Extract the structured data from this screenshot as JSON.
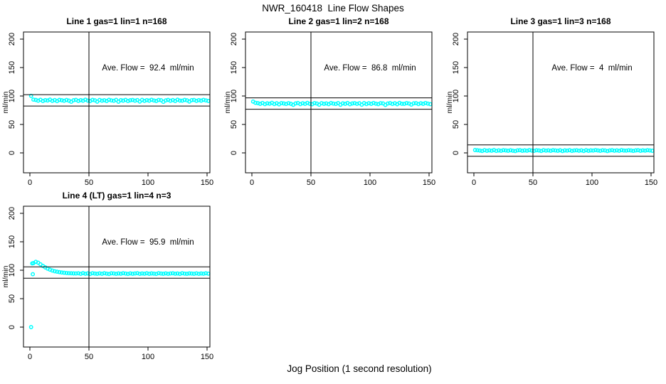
{
  "page": {
    "main_title": "NWR_160418  Line Flow Shapes",
    "x_axis_outer_label": "Jog Position (1 second resolution)",
    "background_color": "#ffffff",
    "point_color": "#00ffff",
    "axis_color": "#000000"
  },
  "chart_data": [
    {
      "type": "scatter",
      "title": "Line 1 gas=1 lin=1 n=168",
      "annotation": "Ave. Flow =  92.4  ml/min",
      "ave_flow": 92.4,
      "n": 168,
      "ylabel": "ml/min",
      "marker": "open-circle",
      "grid": false,
      "x_ticks": [
        0,
        50,
        100,
        150
      ],
      "y_ticks": [
        0,
        50,
        100,
        150,
        200
      ],
      "xlim": [
        -5.4,
        152.4
      ],
      "ylim": [
        -35,
        212.5
      ],
      "vline_x": 50,
      "hlines": [
        102.4,
        82.4
      ],
      "points": {
        "x_start": 1,
        "x_step": 2,
        "y": [
          100.2,
          93.6,
          93.1,
          91.8,
          93.4,
          91.3,
          92.7,
          92.1,
          93.6,
          91.5,
          92.9,
          91.0,
          93.2,
          92.5,
          91.6,
          93.0,
          91.9,
          89.9,
          92.6,
          93.3,
          91.4,
          92.8,
          91.7,
          93.5,
          92.0,
          91.2,
          93.1,
          92.4,
          90.1,
          93.0,
          91.8,
          92.6,
          91.3,
          93.4,
          92.2,
          91.6,
          93.2,
          90.0,
          92.7,
          91.9,
          93.3,
          91.1,
          92.5,
          93.0,
          91.7,
          92.9,
          90.2,
          93.1,
          91.5,
          92.8,
          91.9,
          93.4,
          92.1,
          91.3,
          93.0,
          92.6,
          89.8,
          92.3,
          93.2,
          91.6,
          92.9,
          91.2,
          93.5,
          92.0,
          91.8,
          93.1,
          92.4,
          90.3,
          92.7,
          93.0,
          91.5,
          92.8,
          91.9,
          93.3,
          92.2,
          91.4
        ]
      },
      "extra_points": []
    },
    {
      "type": "scatter",
      "title": "Line 2 gas=1 lin=2 n=168",
      "annotation": "Ave. Flow =  86.8  ml/min",
      "ave_flow": 86.8,
      "n": 168,
      "ylabel": "ml/min",
      "marker": "open-circle",
      "grid": false,
      "x_ticks": [
        0,
        50,
        100,
        150
      ],
      "y_ticks": [
        0,
        50,
        100,
        150,
        200
      ],
      "xlim": [
        -5.4,
        152.4
      ],
      "ylim": [
        -35,
        212.5
      ],
      "vline_x": 50,
      "hlines": [
        96.8,
        76.8
      ],
      "points": {
        "x_start": 1,
        "x_step": 2,
        "y": [
          90.3,
          88.0,
          87.5,
          86.2,
          87.8,
          85.7,
          87.1,
          86.5,
          88.0,
          85.9,
          87.3,
          85.4,
          87.6,
          86.9,
          86.0,
          87.4,
          86.3,
          84.5,
          87.0,
          87.7,
          85.8,
          87.2,
          86.1,
          87.9,
          86.4,
          85.6,
          87.5,
          86.8,
          84.7,
          87.4,
          86.2,
          87.0,
          85.7,
          87.8,
          86.6,
          86.0,
          87.6,
          84.6,
          87.1,
          86.3,
          87.7,
          85.5,
          86.9,
          87.4,
          86.1,
          87.3,
          84.8,
          87.5,
          85.9,
          87.2,
          86.3,
          87.8,
          86.5,
          85.7,
          87.4,
          87.0,
          84.4,
          86.7,
          87.6,
          86.0,
          87.3,
          85.6,
          87.9,
          86.4,
          86.2,
          87.5,
          86.8,
          84.9,
          87.1,
          87.4,
          85.9,
          87.2,
          86.3,
          87.7,
          86.6,
          85.8
        ]
      },
      "extra_points": []
    },
    {
      "type": "scatter",
      "title": "Line 3 gas=1 lin=3 n=168",
      "annotation": "Ave. Flow =  4  ml/min",
      "ave_flow": 4,
      "n": 168,
      "ylabel": "ml/min",
      "marker": "open-circle",
      "grid": false,
      "x_ticks": [
        0,
        50,
        100,
        150
      ],
      "y_ticks": [
        0,
        50,
        100,
        150,
        200
      ],
      "xlim": [
        -5.4,
        152.4
      ],
      "ylim": [
        -35,
        212.5
      ],
      "vline_x": 50,
      "hlines": [
        14,
        -6
      ],
      "points": {
        "x_start": 1,
        "x_step": 2,
        "y": [
          5.0,
          4.6,
          4.1,
          3.4,
          4.8,
          3.7,
          4.5,
          3.9,
          5.0,
          3.5,
          4.4,
          3.6,
          4.7,
          4.2,
          3.8,
          4.6,
          3.9,
          3.3,
          4.5,
          4.8,
          3.7,
          4.4,
          3.9,
          4.9,
          4.1,
          3.6,
          4.6,
          4.2,
          3.4,
          4.7,
          4.0,
          4.5,
          3.7,
          4.8,
          4.2,
          3.8,
          4.6,
          3.3,
          4.4,
          4.0,
          4.8,
          3.5,
          4.3,
          4.6,
          3.9,
          4.5,
          3.4,
          4.7,
          3.8,
          4.4,
          4.1,
          4.9,
          4.2,
          3.6,
          4.6,
          4.3,
          3.3,
          4.2,
          4.8,
          3.9,
          4.5,
          3.6,
          4.9,
          4.1,
          4.0,
          4.6,
          4.2,
          3.5,
          4.4,
          4.7,
          3.8,
          4.5,
          4.0,
          4.8,
          4.2,
          3.7
        ]
      },
      "extra_points": []
    },
    {
      "type": "scatter",
      "title": "Line 4 (LT) gas=1 lin=4 n=3",
      "annotation": "Ave. Flow =  95.9  ml/min",
      "ave_flow": 95.9,
      "n": 3,
      "ylabel": "ml/min",
      "marker": "open-circle",
      "grid": false,
      "x_ticks": [
        0,
        50,
        100,
        150
      ],
      "y_ticks": [
        0,
        50,
        100,
        150,
        200
      ],
      "xlim": [
        -5.4,
        152.4
      ],
      "ylim": [
        -35,
        212.5
      ],
      "vline_x": 50,
      "hlines": [
        105.9,
        85.9
      ],
      "points": {
        "x_start": 3,
        "x_step": 2,
        "y": [
          112.5,
          114.8,
          113.2,
          110.4,
          107.6,
          105.0,
          102.8,
          101.0,
          99.5,
          98.3,
          97.4,
          96.6,
          96.0,
          95.5,
          95.1,
          94.8,
          94.6,
          94.4,
          94.3,
          94.6,
          93.6,
          94.9,
          93.9,
          94.4,
          93.5,
          94.8,
          94.1,
          93.7,
          94.5,
          93.8,
          94.7,
          94.0,
          93.4,
          94.6,
          94.2,
          93.6,
          94.4,
          93.9,
          94.8,
          94.1,
          93.5,
          94.5,
          93.8,
          94.3,
          94.7,
          93.6,
          94.2,
          93.9,
          94.6,
          93.7,
          94.4,
          94.0,
          93.5,
          94.8,
          94.1,
          93.8,
          94.5,
          93.6,
          94.3,
          94.6,
          93.9,
          94.2,
          93.5,
          94.7,
          94.0,
          93.7,
          94.4,
          94.1,
          93.8,
          94.5,
          93.6,
          94.3,
          93.9,
          94.6,
          94.0
        ]
      },
      "extra_points": [
        [
          1,
          0
        ],
        [
          2,
          112
        ],
        [
          2.5,
          93
        ]
      ]
    }
  ]
}
